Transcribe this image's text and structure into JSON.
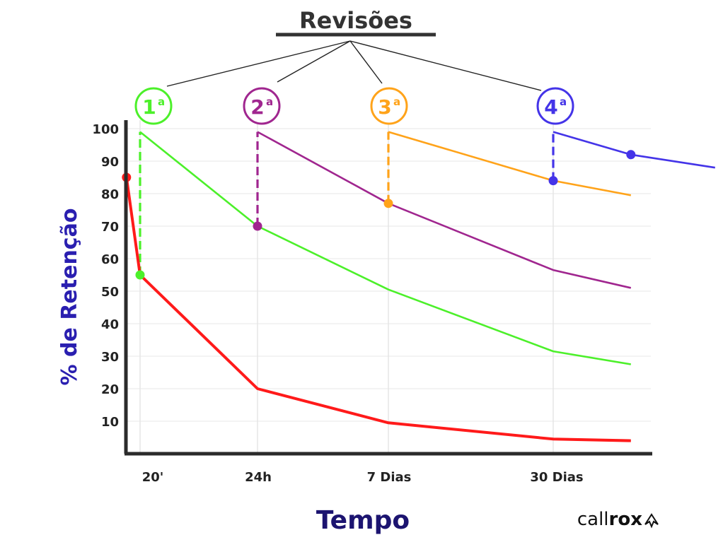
{
  "chart_data": {
    "type": "line",
    "title": "Revisões",
    "xlabel": "Tempo",
    "ylabel": "% de Retenção",
    "ylim": [
      0,
      100
    ],
    "yticks": [
      10,
      20,
      30,
      40,
      50,
      60,
      70,
      80,
      90,
      100
    ],
    "categories": [
      "20'",
      "24h",
      "7 Dias",
      "30 Dias"
    ],
    "grid": true,
    "colors": {
      "no_review": "#ff1a1a",
      "review_1": "#4cf02a",
      "review_2": "#a0268f",
      "review_3": "#ffa31a",
      "review_4": "#4434e8",
      "axis": "#2b2b2b",
      "ylabel": "#2a1fb0",
      "xlabel": "#1c1470"
    },
    "reviews": [
      {
        "number": "1",
        "suffix": "a",
        "at": "20'"
      },
      {
        "number": "2",
        "suffix": "a",
        "at": "24h"
      },
      {
        "number": "3",
        "suffix": "a",
        "at": "7 Dias"
      },
      {
        "number": "4",
        "suffix": "a",
        "at": "30 Dias"
      }
    ],
    "series": [
      {
        "key": "no_review",
        "points": [
          [
            -0.6,
            85
          ],
          [
            0,
            55
          ],
          [
            1,
            20
          ],
          [
            2,
            9.5
          ],
          [
            3,
            4.5
          ],
          [
            3.6,
            4
          ]
        ]
      },
      {
        "key": "review_1",
        "points": [
          [
            0,
            99
          ],
          [
            1,
            70
          ],
          [
            2,
            50.5
          ],
          [
            3,
            31.5
          ],
          [
            3.6,
            27.5
          ]
        ]
      },
      {
        "key": "review_2",
        "points": [
          [
            1,
            99
          ],
          [
            2,
            77
          ],
          [
            3,
            56.5
          ],
          [
            3.6,
            51
          ]
        ]
      },
      {
        "key": "review_3",
        "points": [
          [
            2,
            99
          ],
          [
            3,
            84
          ],
          [
            3.6,
            79.5
          ]
        ]
      },
      {
        "key": "review_4",
        "points": [
          [
            3,
            99
          ],
          [
            3.6,
            92
          ],
          [
            4.25,
            88
          ]
        ]
      }
    ],
    "review_jumps": [
      {
        "key": "review_1",
        "x": 0,
        "from": 55,
        "to": 99
      },
      {
        "key": "review_2",
        "x": 1,
        "from": 70,
        "to": 99
      },
      {
        "key": "review_3",
        "x": 2,
        "from": 77,
        "to": 99
      },
      {
        "key": "review_4",
        "x": 3,
        "from": 84,
        "to": 99
      }
    ],
    "markers": [
      {
        "key": "no_review",
        "x": -0.6,
        "y": 85
      },
      {
        "key": "review_1",
        "x": 0,
        "y": 55
      },
      {
        "key": "review_2",
        "x": 1,
        "y": 70
      },
      {
        "key": "review_3",
        "x": 2,
        "y": 77
      },
      {
        "key": "review_4",
        "x": 3,
        "y": 84
      },
      {
        "key": "review_4",
        "x": 3.6,
        "y": 92
      }
    ]
  },
  "brand": {
    "light": "call",
    "bold": "rox",
    "icon": "arrow-icon"
  }
}
